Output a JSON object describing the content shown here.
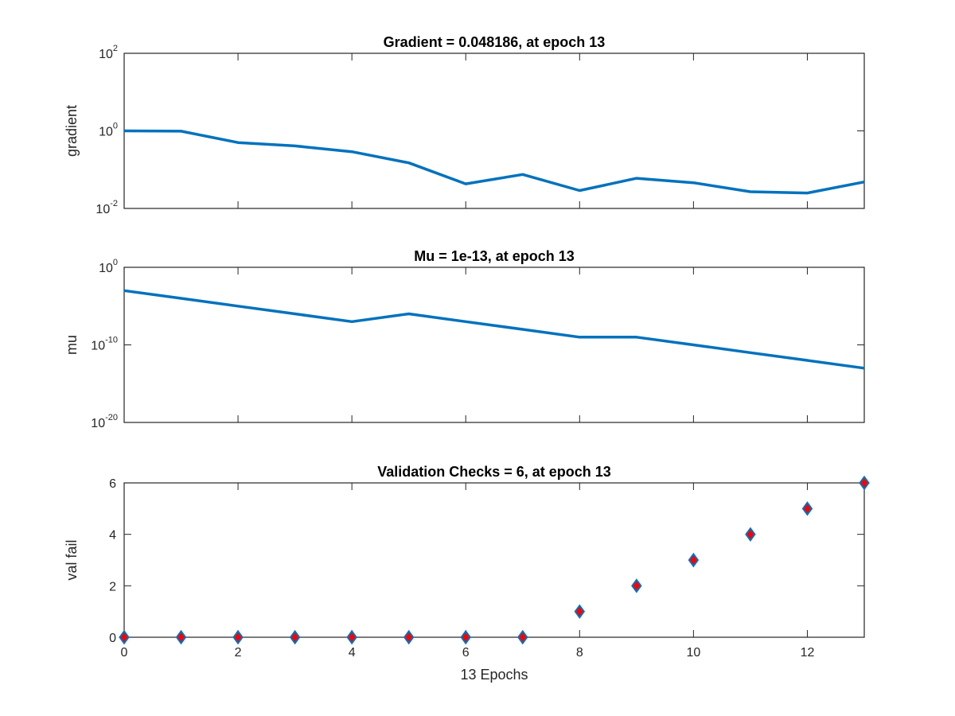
{
  "chart_data": [
    {
      "type": "line",
      "title": "Gradient = 0.048186, at epoch 13",
      "xlabel": "",
      "ylabel": "gradient",
      "yscale": "log",
      "ylim": [
        0.01,
        100
      ],
      "yticks": [
        {
          "base": "10",
          "exp": "-2",
          "value": 0.01
        },
        {
          "base": "10",
          "exp": "0",
          "value": 1
        },
        {
          "base": "10",
          "exp": "2",
          "value": 100
        }
      ],
      "xlim": [
        0,
        13
      ],
      "xticks": [
        0,
        2,
        4,
        6,
        8,
        10,
        12
      ],
      "show_xtick_labels": false,
      "color": "#0072BD",
      "x": [
        0,
        1,
        2,
        3,
        4,
        5,
        6,
        7,
        8,
        9,
        10,
        11,
        12,
        13
      ],
      "y": [
        1.0,
        0.98,
        0.5,
        0.41,
        0.29,
        0.15,
        0.043,
        0.075,
        0.029,
        0.06,
        0.046,
        0.027,
        0.025,
        0.048186
      ]
    },
    {
      "type": "line",
      "title": "Mu = 1e-13, at epoch 13",
      "xlabel": "",
      "ylabel": "mu",
      "yscale": "log",
      "ylim": [
        1e-20,
        1
      ],
      "yticks": [
        {
          "base": "10",
          "exp": "-20",
          "value": 1e-20
        },
        {
          "base": "10",
          "exp": "-10",
          "value": 1e-10
        },
        {
          "base": "10",
          "exp": "0",
          "value": 1
        }
      ],
      "xlim": [
        0,
        13
      ],
      "xticks": [
        0,
        2,
        4,
        6,
        8,
        10,
        12
      ],
      "show_xtick_labels": false,
      "color": "#0072BD",
      "x": [
        0,
        1,
        2,
        3,
        4,
        5,
        6,
        7,
        8,
        9,
        10,
        11,
        12,
        13
      ],
      "y": [
        0.001,
        0.0001,
        1e-05,
        1e-06,
        1e-07,
        1e-06,
        1e-07,
        1e-08,
        1e-09,
        1e-09,
        1e-10,
        1e-11,
        1e-12,
        1e-13
      ]
    },
    {
      "type": "scatter",
      "title": "Validation Checks = 6, at epoch 13",
      "xlabel": "13 Epochs",
      "ylabel": "val fail",
      "yscale": "linear",
      "ylim": [
        0,
        6
      ],
      "yticks": [
        0,
        2,
        4,
        6
      ],
      "xlim": [
        0,
        13
      ],
      "xticks": [
        0,
        2,
        4,
        6,
        8,
        10,
        12
      ],
      "show_xtick_labels": true,
      "marker": "diamond",
      "marker_face": "#FF0000",
      "marker_edge": "#0072BD",
      "x": [
        0,
        1,
        2,
        3,
        4,
        5,
        6,
        7,
        8,
        9,
        10,
        11,
        12,
        13
      ],
      "y": [
        0,
        0,
        0,
        0,
        0,
        0,
        0,
        0,
        1,
        2,
        3,
        4,
        5,
        6
      ]
    }
  ]
}
